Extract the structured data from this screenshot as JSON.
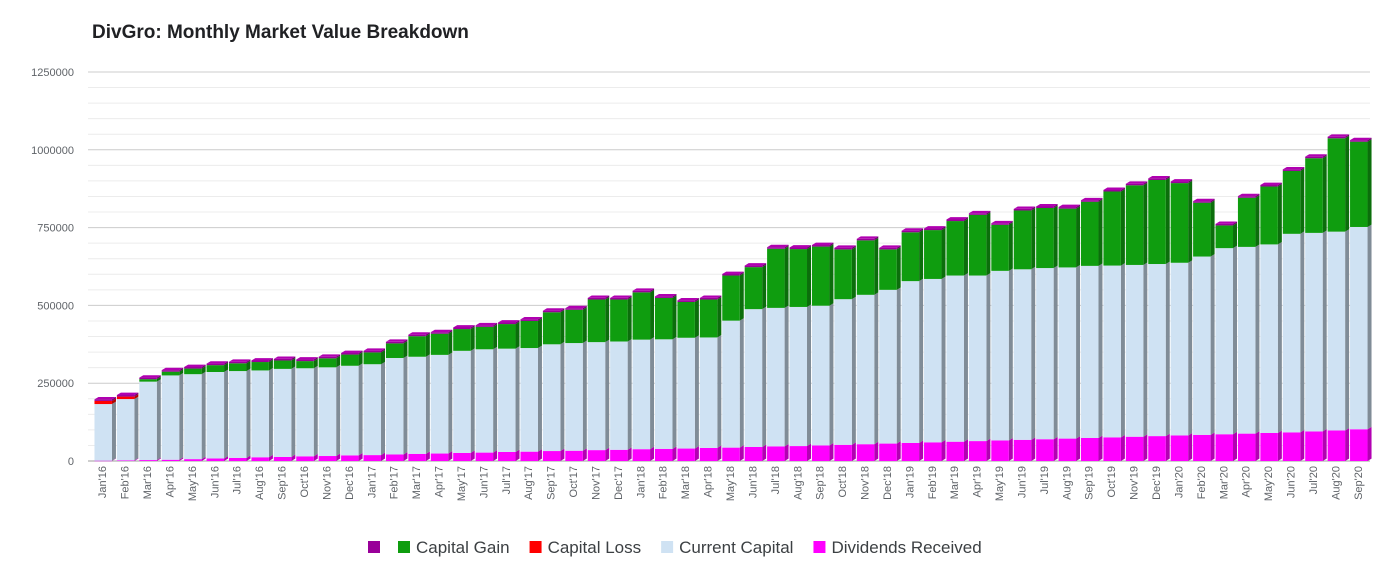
{
  "chart_data": {
    "type": "bar",
    "stacked": true,
    "style": "3d",
    "title": "DivGro: Monthly Market Value Breakdown",
    "xlabel": "",
    "ylabel": "",
    "ylim": [
      0,
      1250000
    ],
    "yticks": [
      "0",
      "250000",
      "500000",
      "750000",
      "1000000",
      "1250000"
    ],
    "grid": true,
    "legend_position": "bottom",
    "categories": [
      "Jan'16",
      "Feb'16",
      "Mar'16",
      "Apr'16",
      "May'16",
      "Jun'16",
      "Jul'16",
      "Aug'16",
      "Sep'16",
      "Oct'16",
      "Nov'16",
      "Dec'16",
      "Jan'17",
      "Feb'17",
      "Mar'17",
      "Apr'17",
      "May'17",
      "Jun'17",
      "Jul'17",
      "Aug'17",
      "Sep'17",
      "Oct'17",
      "Nov'17",
      "Dec'17",
      "Jan'18",
      "Feb'18",
      "Mar'18",
      "Apr'18",
      "May'18",
      "Jun'18",
      "Jul'18",
      "Aug'18",
      "Sep'18",
      "Oct'18",
      "Nov'18",
      "Dec'18",
      "Jan'19",
      "Feb'19",
      "Mar'19",
      "Apr'19",
      "May'19",
      "Jun'19",
      "Jul'19",
      "Aug'19",
      "Sep'19",
      "Oct'19",
      "Nov'19",
      "Dec'19",
      "Jan'20",
      "Feb'20",
      "Mar'20",
      "Apr'20",
      "May'20",
      "Jun'20",
      "Jul'20",
      "Aug'20",
      "Sep'20"
    ],
    "series": [
      {
        "name": "",
        "color": "#990099",
        "values": [
          5000,
          5000,
          5000,
          5000,
          5000,
          5000,
          5000,
          5000,
          5000,
          5000,
          5000,
          5000,
          5000,
          5000,
          5000,
          5000,
          5000,
          5000,
          5000,
          5000,
          5000,
          5000,
          5000,
          5000,
          5000,
          5000,
          5000,
          5000,
          5000,
          5000,
          5000,
          5000,
          5000,
          5000,
          5000,
          5000,
          5000,
          5000,
          5000,
          5000,
          5000,
          5000,
          5000,
          5000,
          5000,
          5000,
          5000,
          5000,
          5000,
          5000,
          5000,
          5000,
          5000,
          5000,
          5000,
          5000,
          5000
        ]
      },
      {
        "name": "Dividends Received",
        "color": "#ff00ff",
        "values": [
          1000,
          2000,
          3000,
          4000,
          6000,
          8000,
          10000,
          12000,
          13000,
          15000,
          16000,
          18000,
          19000,
          21000,
          23000,
          24000,
          26000,
          27000,
          29000,
          30000,
          32000,
          33000,
          35000,
          36000,
          38000,
          39000,
          40000,
          42000,
          43000,
          45000,
          47000,
          48000,
          50000,
          52000,
          54000,
          56000,
          58000,
          60000,
          62000,
          64000,
          66000,
          68000,
          70000,
          72000,
          74000,
          76000,
          78000,
          80000,
          82000,
          84000,
          86000,
          88000,
          90000,
          92000,
          95000,
          98000,
          102000
        ]
      },
      {
        "name": "Current Capital",
        "color": "#cfe2f3",
        "values": [
          182000,
          197000,
          252000,
          271000,
          273000,
          278000,
          279000,
          279000,
          283000,
          283000,
          285000,
          288000,
          292000,
          310000,
          312000,
          317000,
          328000,
          332000,
          332000,
          333000,
          343000,
          346000,
          347000,
          348000,
          352000,
          352000,
          356000,
          355000,
          408000,
          443000,
          445000,
          447000,
          449000,
          468000,
          480000,
          494000,
          520000,
          525000,
          534000,
          532000,
          545000,
          548000,
          550000,
          550000,
          553000,
          552000,
          552000,
          553000,
          555000,
          573000,
          598000,
          600000,
          606000,
          638000,
          638000,
          639000,
          650000
        ]
      },
      {
        "name": "Capital Loss",
        "color": "#ff0000",
        "values": [
          10000,
          8000,
          0,
          0,
          0,
          0,
          0,
          0,
          0,
          0,
          0,
          0,
          0,
          0,
          0,
          0,
          0,
          0,
          0,
          0,
          0,
          0,
          0,
          0,
          0,
          0,
          0,
          0,
          0,
          0,
          0,
          0,
          0,
          0,
          0,
          0,
          0,
          0,
          0,
          0,
          0,
          0,
          0,
          0,
          0,
          0,
          0,
          0,
          0,
          0,
          0,
          0,
          0,
          0,
          0,
          0,
          0
        ]
      },
      {
        "name": "Capital Gain",
        "color": "#0f9d0f",
        "values": [
          0,
          0,
          8000,
          12000,
          18000,
          22000,
          25000,
          27000,
          27000,
          23000,
          29000,
          36000,
          38000,
          47000,
          66000,
          68000,
          70000,
          72000,
          79000,
          87000,
          103000,
          107000,
          137000,
          135000,
          152000,
          133000,
          115000,
          122000,
          145000,
          135000,
          190000,
          186000,
          190000,
          160000,
          175000,
          130000,
          157000,
          157000,
          175000,
          195000,
          148000,
          189000,
          193000,
          189000,
          206000,
          238000,
          256000,
          270000,
          256000,
          173000,
          73000,
          158000,
          186000,
          202000,
          240000,
          300000,
          274000
        ]
      }
    ]
  },
  "legend": {
    "items": [
      {
        "label": "",
        "color": "#990099"
      },
      {
        "label": "Capital Gain",
        "color": "#0f9d0f"
      },
      {
        "label": "Capital Loss",
        "color": "#ff0000"
      },
      {
        "label": "Current Capital",
        "color": "#cfe2f3"
      },
      {
        "label": "Dividends Received",
        "color": "#ff00ff"
      }
    ]
  }
}
